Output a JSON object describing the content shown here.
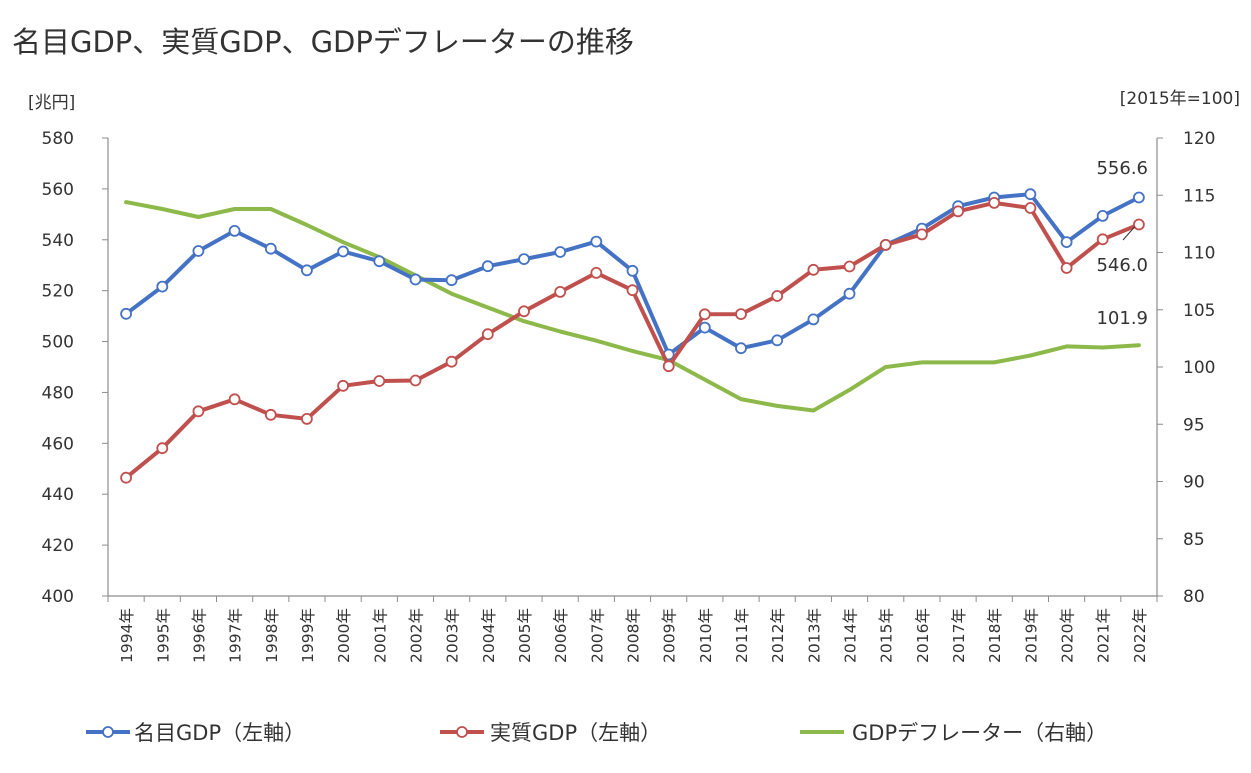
{
  "chart_data": {
    "type": "line",
    "title": "名目GDP、実質GDP、GDPデフレーターの推移",
    "left_axis_unit": "[兆円]",
    "right_axis_unit": "[2015年=100]",
    "ylim_left": [
      400,
      580
    ],
    "ylim_right": [
      80,
      120
    ],
    "left_ticks": [
      "400",
      "420",
      "440",
      "460",
      "480",
      "500",
      "520",
      "540",
      "560",
      "580"
    ],
    "right_ticks": [
      "80",
      "85",
      "90",
      "95",
      "100",
      "105",
      "110",
      "115",
      "120"
    ],
    "categories": [
      "1994年",
      "1995年",
      "1996年",
      "1997年",
      "1998年",
      "1999年",
      "2000年",
      "2001年",
      "2002年",
      "2003年",
      "2004年",
      "2005年",
      "2006年",
      "2007年",
      "2008年",
      "2009年",
      "2010年",
      "2011年",
      "2012年",
      "2013年",
      "2014年",
      "2015年",
      "2016年",
      "2017年",
      "2018年",
      "2019年",
      "2020年",
      "2021年",
      "2022年"
    ],
    "series": [
      {
        "name": "名目GDP（左軸）",
        "axis": "left",
        "color": "#4472C4",
        "markers": true,
        "values": [
          510.9,
          521.6,
          535.6,
          543.5,
          536.5,
          528.0,
          535.4,
          531.6,
          524.4,
          524.1,
          529.6,
          532.4,
          535.2,
          539.3,
          527.8,
          494.9,
          505.5,
          497.4,
          500.5,
          508.7,
          518.8,
          538.0,
          544.4,
          553.2,
          556.6,
          557.9,
          539.1,
          549.4,
          556.6
        ]
      },
      {
        "name": "実質GDP（左軸）",
        "axis": "left",
        "color": "#C0504D",
        "markers": true,
        "values": [
          446.5,
          458.1,
          472.6,
          477.3,
          471.2,
          469.6,
          482.6,
          484.5,
          484.7,
          492.1,
          502.9,
          511.9,
          519.5,
          527.0,
          520.2,
          490.3,
          510.7,
          510.8,
          517.9,
          528.2,
          529.5,
          538.0,
          542.1,
          551.2,
          554.5,
          552.5,
          528.9,
          540.2,
          546.0
        ]
      },
      {
        "name": "GDPデフレーター（右軸）",
        "axis": "right",
        "color": "#8DB84A",
        "markers": false,
        "values": [
          114.4,
          113.8,
          113.1,
          113.8,
          113.8,
          112.4,
          110.9,
          109.6,
          108.0,
          106.4,
          105.2,
          104.0,
          103.1,
          102.3,
          101.4,
          100.6,
          98.9,
          97.2,
          96.6,
          96.2,
          98.0,
          100.0,
          100.4,
          100.4,
          100.4,
          101.0,
          101.8,
          101.7,
          101.9
        ]
      }
    ],
    "annotations": [
      {
        "text": "556.6",
        "series": 0,
        "index": 28
      },
      {
        "text": "546.0",
        "series": 1,
        "index": 28
      },
      {
        "text": "101.9",
        "series": 2,
        "index": 28
      }
    ],
    "legend_position": "bottom"
  }
}
